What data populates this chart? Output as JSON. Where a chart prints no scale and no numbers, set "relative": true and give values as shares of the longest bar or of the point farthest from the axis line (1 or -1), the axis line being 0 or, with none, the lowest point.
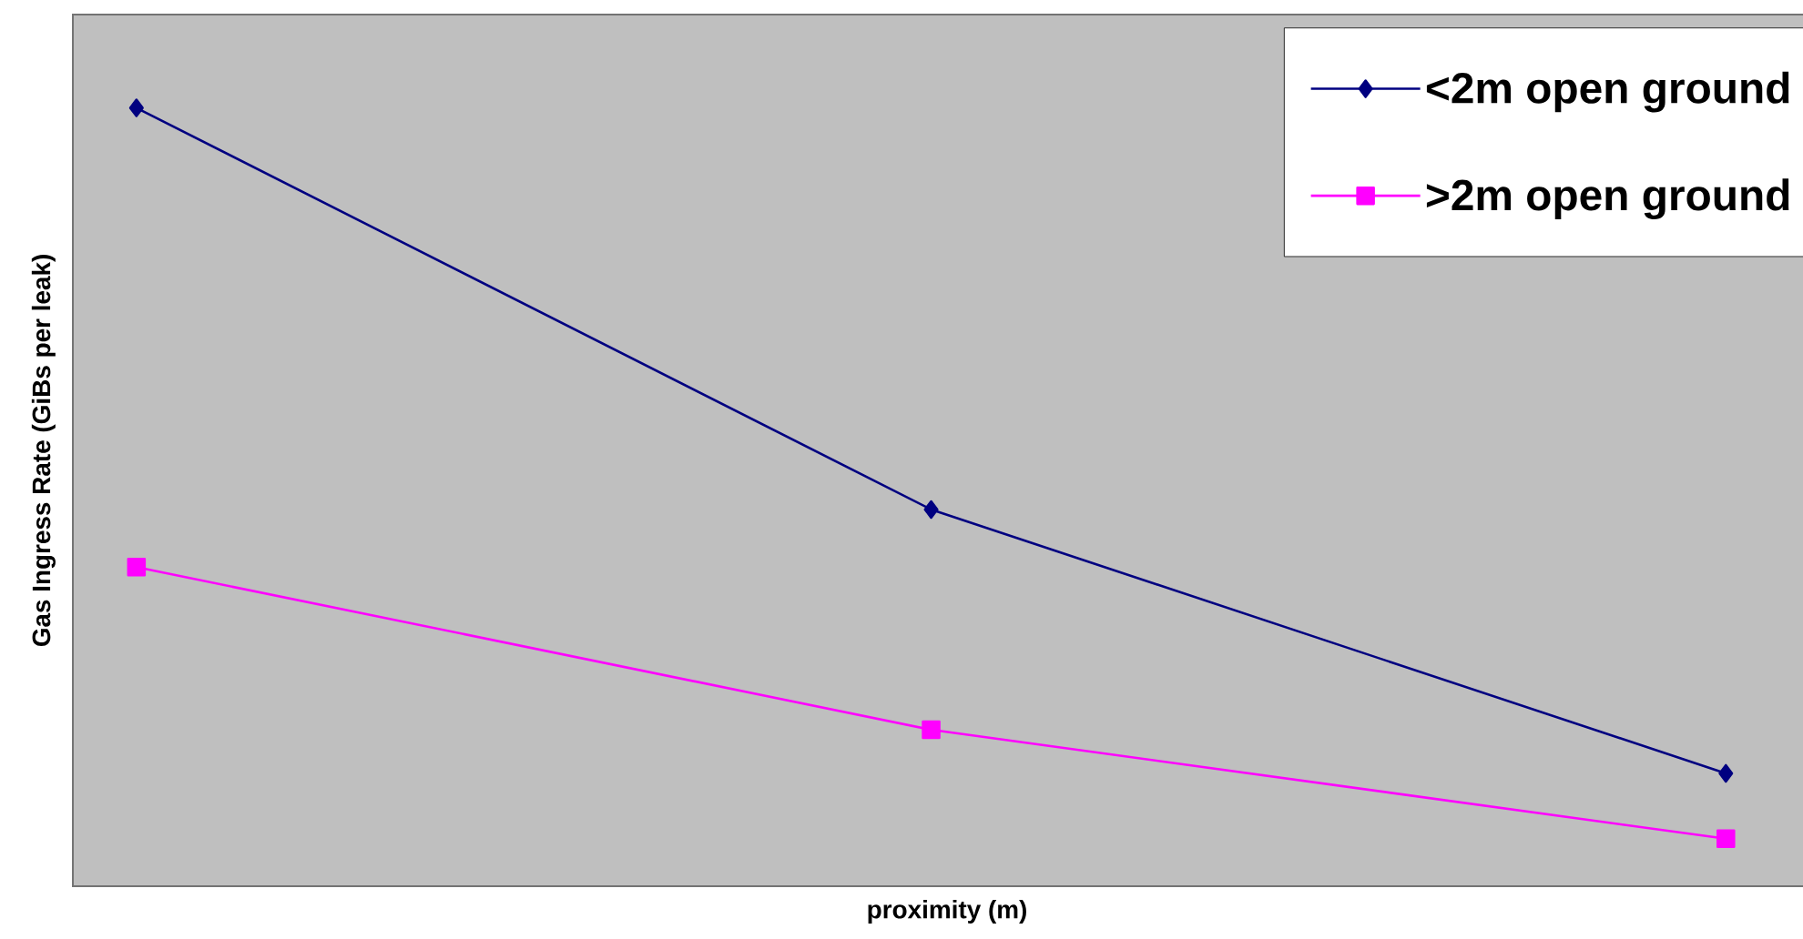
{
  "chart_data": {
    "type": "line",
    "xlabel": "proximity (m)",
    "ylabel": "Gas Ingress Rate (GiBs per leak)",
    "relative": true,
    "categories": [
      null,
      null,
      null
    ],
    "tick_labels": false,
    "legend": "top right",
    "series": [
      {
        "name": "<2m open ground",
        "color": "#000080",
        "marker": "diamond",
        "values": [
          1,
          0.484,
          0.145
        ]
      },
      {
        "name": ">2m open ground",
        "color": "#ff00ff",
        "marker": "square",
        "values": [
          0.41,
          0.201,
          0.061
        ]
      }
    ]
  }
}
